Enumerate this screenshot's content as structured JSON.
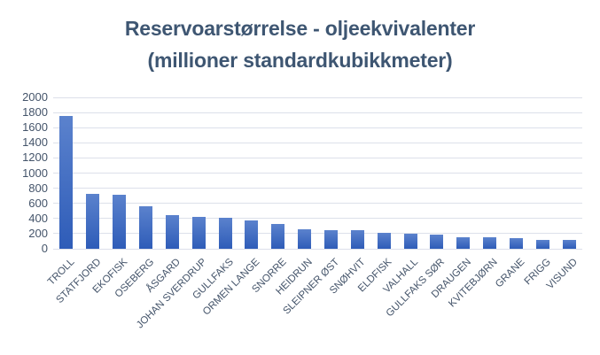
{
  "chart_data": {
    "type": "bar",
    "title": "Reservoarstørrelse - oljeekvivalenter (millioner standardkubikkmeter)",
    "title_lines": [
      "Reservoarstørrelse - oljeekvivalenter",
      "(millioner standardkubikkmeter)"
    ],
    "categories": [
      "TROLL",
      "STATFJORD",
      "EKOFISK",
      "OSEBERG",
      "ÅSGARD",
      "JOHAN SVERDRUP",
      "GULLFAKS",
      "ORMEN LANGE",
      "SNORRE",
      "HEIDRUN",
      "SLEIPNER ØST",
      "SNØHVIT",
      "ELDFISK",
      "VALHALL",
      "GULLFAKS SØR",
      "DRAUGEN",
      "KVITEBJØRN",
      "GRANE",
      "FRIGG",
      "VISUND"
    ],
    "values": [
      1750,
      720,
      710,
      560,
      450,
      425,
      410,
      370,
      325,
      255,
      250,
      245,
      210,
      195,
      185,
      152,
      150,
      140,
      118,
      112
    ],
    "xlabel": "",
    "ylabel": "",
    "ylim": [
      0,
      2000
    ],
    "yticks": [
      0,
      200,
      400,
      600,
      800,
      1000,
      1200,
      1400,
      1600,
      1800,
      2000
    ],
    "grid": "horizontal",
    "legend": "none",
    "colors": {
      "bar_gradient_top": "#5B82CD",
      "bar_gradient_bottom": "#2E5CB8",
      "gridline": "#DCE0EA",
      "axis_text": "#44546A",
      "title_text": "#3E5672",
      "background": "#FFFFFF"
    }
  }
}
